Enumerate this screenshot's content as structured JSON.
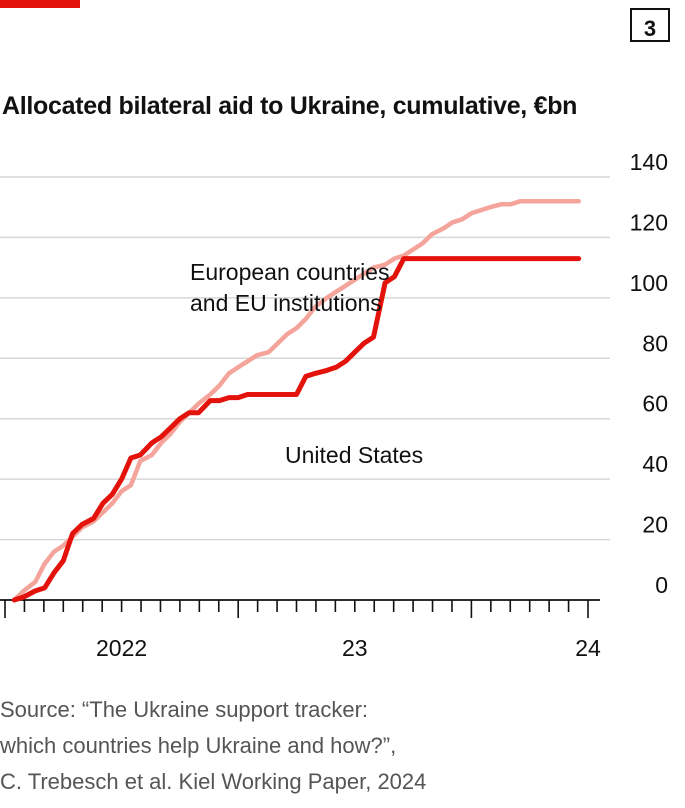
{
  "badge": "3",
  "chart_data": {
    "type": "line",
    "title": "Allocated bilateral aid to Ukraine, cumulative, €bn",
    "xlabel": "",
    "ylabel": "",
    "ylim": [
      0,
      140
    ],
    "yticks": [
      0,
      20,
      40,
      60,
      80,
      100,
      120,
      140
    ],
    "x_tick_labels": [
      "2022",
      "23",
      "24"
    ],
    "x_range": [
      2022.0,
      2024.5
    ],
    "grid": "horizontal",
    "legend": "inline labels",
    "series": [
      {
        "name": "European countries and EU institutions",
        "label_lines": [
          "European countries",
          "and EU institutions"
        ],
        "color": "#f4a49a",
        "x": [
          2022.04,
          2022.08,
          2022.13,
          2022.17,
          2022.21,
          2022.25,
          2022.29,
          2022.33,
          2022.38,
          2022.42,
          2022.46,
          2022.5,
          2022.54,
          2022.58,
          2022.63,
          2022.67,
          2022.71,
          2022.75,
          2022.79,
          2022.83,
          2022.88,
          2022.92,
          2022.96,
          2023.0,
          2023.04,
          2023.08,
          2023.13,
          2023.17,
          2023.21,
          2023.25,
          2023.29,
          2023.33,
          2023.38,
          2023.42,
          2023.46,
          2023.5,
          2023.54,
          2023.58,
          2023.63,
          2023.67,
          2023.71,
          2023.75,
          2023.79,
          2023.83,
          2023.88,
          2023.92,
          2023.96,
          2024.0,
          2024.04,
          2024.08,
          2024.13,
          2024.17,
          2024.21,
          2024.25,
          2024.29,
          2024.33,
          2024.38,
          2024.42,
          2024.46
        ],
        "values": [
          0,
          3,
          6,
          12,
          16,
          18,
          21,
          24,
          26,
          29,
          32,
          36,
          38,
          46,
          48,
          52,
          55,
          59,
          62,
          65,
          68,
          71,
          75,
          77,
          79,
          81,
          82,
          85,
          88,
          90,
          93,
          97,
          100,
          102,
          104,
          106,
          108,
          110,
          111,
          113,
          114,
          116,
          118,
          121,
          123,
          125,
          126,
          128,
          129,
          130,
          131,
          131,
          132,
          132,
          132,
          132,
          132,
          132,
          132
        ]
      },
      {
        "name": "United States",
        "label_lines": [
          "United States"
        ],
        "color": "#e3120b",
        "x": [
          2022.04,
          2022.08,
          2022.13,
          2022.17,
          2022.21,
          2022.25,
          2022.29,
          2022.33,
          2022.38,
          2022.42,
          2022.46,
          2022.5,
          2022.54,
          2022.58,
          2022.63,
          2022.67,
          2022.71,
          2022.75,
          2022.79,
          2022.83,
          2022.88,
          2022.92,
          2022.96,
          2023.0,
          2023.04,
          2023.08,
          2023.13,
          2023.17,
          2023.21,
          2023.25,
          2023.29,
          2023.33,
          2023.38,
          2023.42,
          2023.46,
          2023.5,
          2023.54,
          2023.58,
          2023.63,
          2023.67,
          2023.71,
          2023.75,
          2023.79,
          2023.83,
          2023.88,
          2023.92,
          2023.96,
          2024.0,
          2024.04,
          2024.08,
          2024.13,
          2024.17,
          2024.21,
          2024.25,
          2024.29,
          2024.33,
          2024.38,
          2024.42,
          2024.46
        ],
        "values": [
          0,
          1,
          3,
          4,
          9,
          13,
          22,
          25,
          27,
          32,
          35,
          40,
          47,
          48,
          52,
          54,
          57,
          60,
          62,
          62,
          66,
          66,
          67,
          67,
          68,
          68,
          68,
          68,
          68,
          68,
          74,
          75,
          76,
          77,
          79,
          82,
          85,
          87,
          105,
          107,
          113,
          113,
          113,
          113,
          113,
          113,
          113,
          113,
          113,
          113,
          113,
          113,
          113,
          113,
          113,
          113,
          113,
          113,
          113
        ]
      }
    ]
  },
  "source": {
    "lines": [
      "Source: “The Ukraine support tracker:",
      "which countries help Ukraine and how?”,",
      "C. Trebesch et al. Kiel Working Paper, 2024"
    ]
  }
}
